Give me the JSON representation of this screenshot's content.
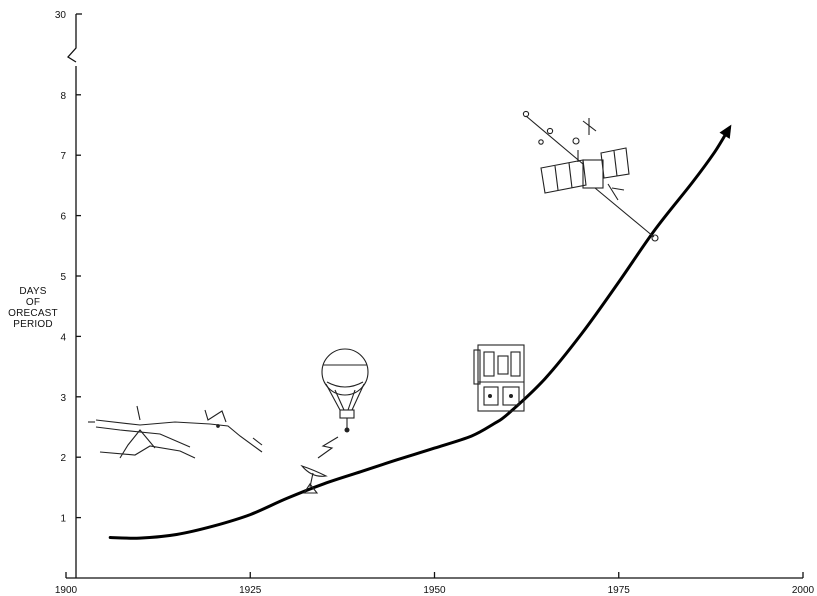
{
  "chart_data": {
    "type": "line",
    "title": "",
    "xlabel": "",
    "ylabel": "DAYS\nOF\nORECAST\nPERIOD",
    "xlim": [
      1900,
      2000
    ],
    "ylim": [
      0,
      8.6
    ],
    "y_break": {
      "top_value": 30
    },
    "x_ticks": [
      1900,
      1925,
      1950,
      1975,
      2000
    ],
    "x_tick_labels": [
      "1900",
      "1925",
      "1950",
      "1975",
      "2000"
    ],
    "y_ticks": [
      1,
      2,
      3,
      4,
      5,
      6,
      7,
      8
    ],
    "y_tick_labels": [
      "1",
      "2",
      "3",
      "4",
      "5",
      "6",
      "7",
      "8"
    ],
    "y_break_label": "30",
    "grid": false,
    "series": [
      {
        "x": [
          1906,
          1910,
          1915,
          1920,
          1925,
          1930,
          1935,
          1940,
          1945,
          1950,
          1955,
          1958,
          1960,
          1965,
          1970,
          1975,
          1980,
          1985,
          1988,
          1990
        ],
        "y": [
          0.67,
          0.66,
          0.72,
          0.86,
          1.05,
          1.32,
          1.56,
          1.76,
          1.96,
          2.15,
          2.35,
          2.55,
          2.72,
          3.3,
          4.05,
          4.9,
          5.78,
          6.55,
          7.05,
          7.45
        ]
      }
    ],
    "illustrations": [
      "weather-map-icon",
      "radar-dish-icon",
      "weather-balloon-icon",
      "computer-icon",
      "satellite-icon"
    ]
  }
}
